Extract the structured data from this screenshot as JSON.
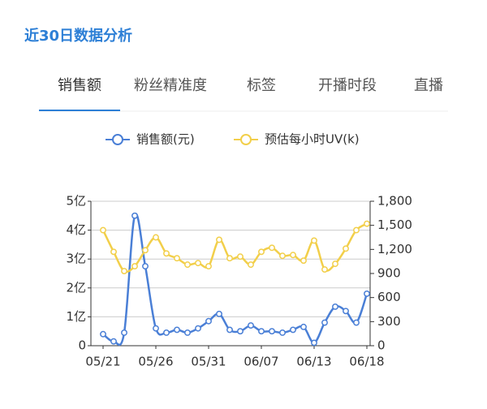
{
  "header": {
    "title": "近30日数据分析"
  },
  "tabs": [
    "销售额",
    "粉丝精准度",
    "标签",
    "开播时段",
    "直播"
  ],
  "chart_data": {
    "type": "line",
    "categories": [
      "05/21",
      null,
      null,
      null,
      null,
      "05/26",
      null,
      null,
      null,
      null,
      "05/31",
      null,
      null,
      null,
      null,
      "06/07",
      null,
      null,
      null,
      null,
      "06/13",
      null,
      null,
      null,
      null,
      "06/18"
    ],
    "series": [
      {
        "name": "销售额(元)",
        "color": "#4a7fd6",
        "axis": "y",
        "values": [
          0.4,
          0.15,
          0.45,
          4.5,
          2.75,
          0.6,
          0.45,
          0.55,
          0.45,
          0.6,
          0.85,
          1.1,
          0.55,
          0.5,
          0.7,
          0.5,
          0.5,
          0.45,
          0.55,
          0.65,
          0.1,
          0.8,
          1.35,
          1.2,
          0.8,
          1.8
        ]
      },
      {
        "name": "预估每小时UV(k)",
        "color": "#f2cf4a",
        "axis": "y2",
        "values": [
          1440,
          1170,
          930,
          990,
          1190,
          1350,
          1150,
          1090,
          1010,
          1030,
          990,
          1320,
          1090,
          1110,
          1010,
          1170,
          1220,
          1120,
          1130,
          1060,
          1310,
          950,
          1020,
          1210,
          1440,
          1520
        ]
      }
    ],
    "ylim": [
      0,
      5
    ],
    "yticks": [
      0,
      {
        "value": 1,
        "label": "1亿"
      },
      {
        "value": 2,
        "label": "2亿"
      },
      {
        "value": 3,
        "label": "3亿"
      },
      {
        "value": 4,
        "label": "4亿"
      },
      {
        "value": 5,
        "label": "5亿"
      }
    ],
    "y2lim": [
      0,
      1800
    ],
    "y2ticks": [
      0,
      300,
      600,
      900,
      {
        "value": 1200,
        "label": "1,200"
      },
      {
        "value": 1500,
        "label": "1,500"
      },
      {
        "value": 1800,
        "label": "1,800"
      }
    ],
    "grid": true,
    "legend": "top"
  }
}
